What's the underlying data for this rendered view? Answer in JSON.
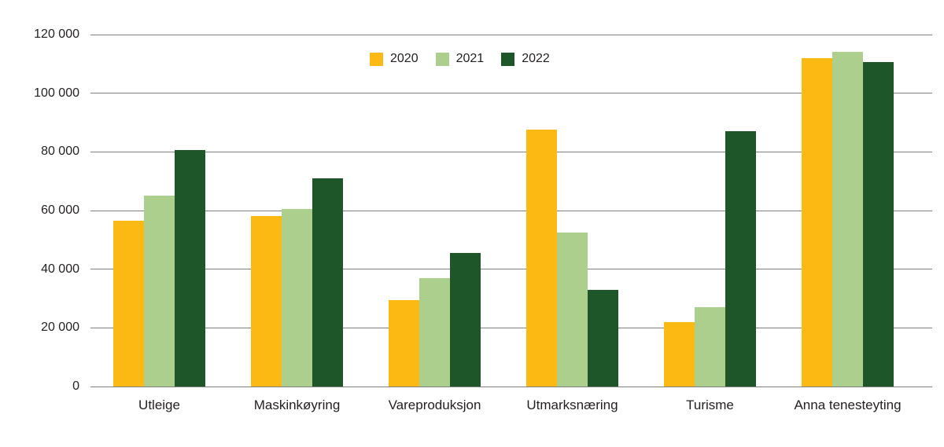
{
  "page": {
    "background_color": "#ffffff",
    "text_color": "#231f20",
    "gridline_color": "#7f7f7f"
  },
  "chart_data": {
    "type": "bar",
    "title": "",
    "categories": [
      "Utleige",
      "Maskinkøyring",
      "Vareproduksjon",
      "Utmarksnæring",
      "Turisme",
      "Anna tenesteyting"
    ],
    "series": [
      {
        "name": "2020",
        "color": "#FCB813",
        "values": [
          56500,
          58000,
          29500,
          87500,
          22000,
          112000
        ]
      },
      {
        "name": "2021",
        "color": "#ACCF8D",
        "values": [
          65000,
          60500,
          37000,
          52500,
          27000,
          114000
        ]
      },
      {
        "name": "2022",
        "color": "#1F5629",
        "values": [
          80500,
          71000,
          45500,
          33000,
          87000,
          110500
        ]
      }
    ],
    "ylim": [
      0,
      120000
    ],
    "ytick_interval": 20000,
    "yticks": [
      {
        "value": 0,
        "label": "0"
      },
      {
        "value": 20000,
        "label": "20 000"
      },
      {
        "value": 40000,
        "label": "40 000"
      },
      {
        "value": 60000,
        "label": "60 000"
      },
      {
        "value": 80000,
        "label": "80 000"
      },
      {
        "value": 100000,
        "label": "100 000"
      },
      {
        "value": 120000,
        "label": "120 000"
      }
    ],
    "grid": "horizontal",
    "legend_position": "top-center",
    "legend_entries": [
      "2020",
      "2021",
      "2022"
    ]
  }
}
